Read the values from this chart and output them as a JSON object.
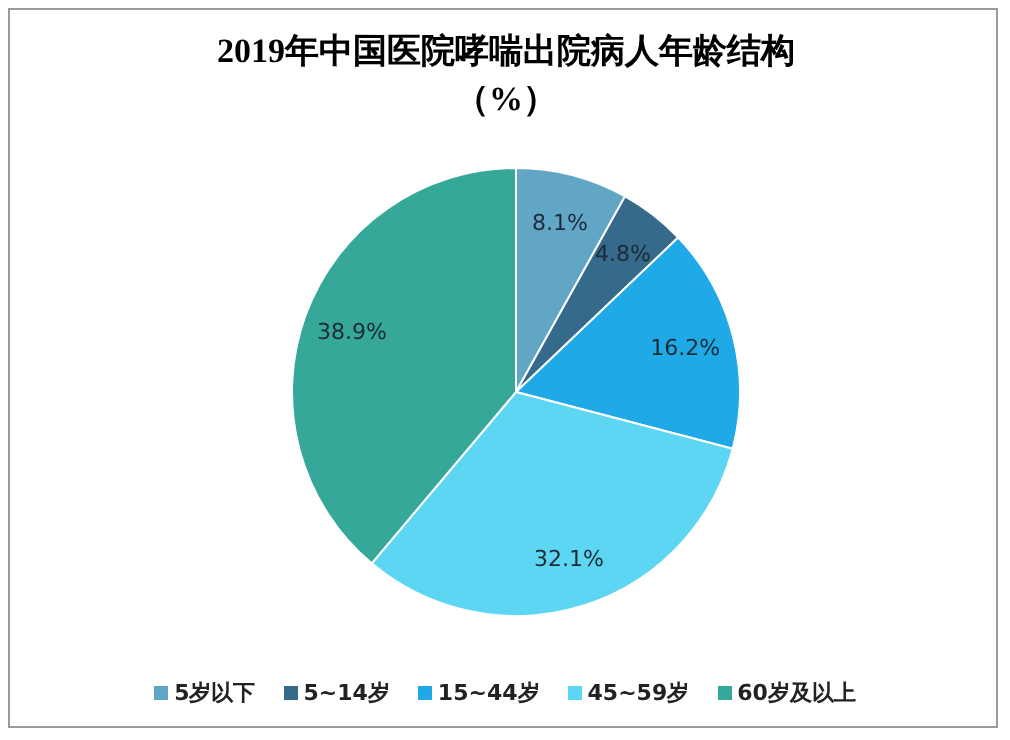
{
  "chart_data": {
    "type": "pie",
    "title": "2019年中国医院哮喘出院病人年龄结构（%）",
    "categories": [
      "5岁以下",
      "5~14岁",
      "15~44岁",
      "45~59岁",
      "60岁及以上"
    ],
    "values": [
      8.1,
      4.8,
      16.2,
      32.1,
      38.9
    ],
    "value_labels": [
      "8.1%",
      "4.8%",
      "16.2%",
      "32.1%",
      "38.9%"
    ],
    "colors": [
      "#62a6c6",
      "#356a8a",
      "#1fa9e6",
      "#5cd6f3",
      "#35a899"
    ],
    "legend": "bottom"
  }
}
